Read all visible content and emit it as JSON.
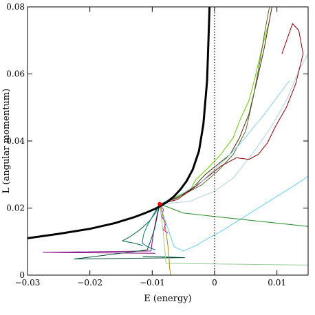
{
  "chart_data": {
    "type": "line",
    "xlabel": "E (energy)",
    "ylabel": "L (angular momentum)",
    "xlim": [
      -0.03,
      0.015
    ],
    "ylim": [
      0,
      0.08
    ],
    "x_ticks": [
      -0.03,
      -0.02,
      -0.01,
      0,
      0.01
    ],
    "x_tick_labels": [
      "−0.03",
      "−0.02",
      "−0.01",
      "0",
      "0.01"
    ],
    "y_ticks": [
      0,
      0.02,
      0.04,
      0.06,
      0.08
    ],
    "y_tick_labels": [
      "0",
      "0.02",
      "0.04",
      "0.06",
      "0.08"
    ],
    "vertical_reference_line": {
      "x": 0,
      "style": "dotted",
      "color": "#000000"
    },
    "boundary_curve": {
      "color": "#000000",
      "x": [
        -0.03,
        -0.025,
        -0.02,
        -0.016,
        -0.013,
        -0.011,
        -0.0095,
        -0.0085,
        -0.0075,
        -0.0065,
        -0.0055,
        -0.0045,
        -0.0035,
        -0.0025,
        -0.0018,
        -0.0012,
        -0.0008
      ],
      "y": [
        0.011,
        0.0123,
        0.0138,
        0.0155,
        0.0172,
        0.0186,
        0.0198,
        0.0208,
        0.022,
        0.0235,
        0.0255,
        0.028,
        0.0315,
        0.037,
        0.045,
        0.058,
        0.08
      ]
    },
    "start_point": {
      "x": -0.0088,
      "y": 0.0212,
      "color": "#ff0000"
    },
    "series": [
      {
        "color": "#006633",
        "x": [
          -0.0088,
          -0.0095,
          -0.0105,
          -0.012,
          -0.0135,
          -0.0148,
          -0.0128,
          -0.0115
        ],
        "y": [
          0.0212,
          0.0185,
          0.016,
          0.0135,
          0.0115,
          0.0102,
          0.0095,
          0.0088
        ]
      },
      {
        "color": "#008080",
        "x": [
          -0.0088,
          -0.0098,
          -0.0108,
          -0.0114,
          -0.0116,
          -0.0108,
          -0.0095
        ],
        "y": [
          0.0212,
          0.018,
          0.0148,
          0.012,
          0.0095,
          0.0085,
          0.0075
        ]
      },
      {
        "color": "#800080",
        "x": [
          -0.0088,
          -0.0092,
          -0.0095,
          -0.0098,
          -0.01,
          -0.0102,
          -0.0275,
          -0.0095
        ],
        "y": [
          0.0212,
          0.0182,
          0.0155,
          0.0125,
          0.01,
          0.0072,
          0.0068,
          0.0065
        ]
      },
      {
        "color": "#cc00cc",
        "x": [
          -0.0088,
          -0.0082,
          -0.0085,
          -0.0078,
          -0.0082,
          -0.0075
        ],
        "y": [
          0.0212,
          0.0195,
          0.0175,
          0.0155,
          0.0135,
          0.0125
        ]
      },
      {
        "color": "#004d33",
        "x": [
          -0.0088,
          -0.0092,
          -0.0096,
          -0.0102,
          -0.0108,
          -0.0225,
          -0.0048,
          -0.0115
        ],
        "y": [
          0.0212,
          0.0175,
          0.014,
          0.0105,
          0.0075,
          0.0048,
          0.0052,
          0.0056
        ]
      },
      {
        "color": "#66ccff",
        "x": [
          -0.0088,
          -0.0075,
          -0.0065,
          -0.005,
          -0.003,
          -0.001,
          0.001,
          0.004,
          0.007,
          0.01,
          0.013,
          0.015
        ],
        "y": [
          0.0212,
          0.014,
          0.0085,
          0.0072,
          0.0088,
          0.011,
          0.013,
          0.0165,
          0.02,
          0.0235,
          0.027,
          0.0295
        ]
      },
      {
        "color": "#99cc99",
        "x": [
          -0.0088,
          -0.0082,
          -0.0078,
          0.015
        ],
        "y": [
          0.0212,
          0.012,
          0.0035,
          0.003
        ]
      },
      {
        "color": "#228b22",
        "x": [
          -0.0088,
          -0.005,
          0.0,
          0.005,
          0.01,
          0.015
        ],
        "y": [
          0.0212,
          0.0185,
          0.0175,
          0.0165,
          0.0155,
          0.0145
        ]
      },
      {
        "color": "#b8860b",
        "x": [
          -0.0088,
          -0.0082,
          -0.0078,
          -0.0075,
          -0.0073,
          -0.0072,
          -0.007
        ],
        "y": [
          0.0212,
          0.017,
          0.013,
          0.009,
          0.005,
          0.002,
          0.0
        ]
      },
      {
        "color": "#66cc00",
        "x": [
          -0.0088,
          -0.006,
          -0.004,
          -0.003,
          -0.001,
          0.001,
          0.003,
          0.004,
          0.0055,
          0.0065,
          0.0075,
          0.0085
        ],
        "y": [
          0.0212,
          0.0235,
          0.025,
          0.0285,
          0.032,
          0.036,
          0.041,
          0.046,
          0.052,
          0.059,
          0.067,
          0.074
        ]
      },
      {
        "color": "#4d2600",
        "x": [
          -0.0088,
          -0.006,
          -0.0035,
          -0.0015,
          0.0005,
          0.0025,
          0.004,
          0.0055,
          0.0068,
          0.008,
          0.0092
        ],
        "y": [
          0.0212,
          0.023,
          0.026,
          0.03,
          0.033,
          0.036,
          0.041,
          0.048,
          0.058,
          0.068,
          0.08
        ]
      },
      {
        "color": "#556b2f",
        "x": [
          -0.0088,
          -0.005,
          -0.002,
          0.0005,
          0.003,
          0.005,
          0.0062,
          0.0072,
          0.008,
          0.0088
        ],
        "y": [
          0.0212,
          0.024,
          0.027,
          0.031,
          0.036,
          0.043,
          0.053,
          0.063,
          0.072,
          0.08
        ]
      },
      {
        "color": "#b0d0e8",
        "x": [
          -0.0088,
          -0.004,
          0.0,
          0.003,
          0.006,
          0.009,
          0.0115,
          0.0135,
          0.015
        ],
        "y": [
          0.0212,
          0.022,
          0.025,
          0.029,
          0.036,
          0.044,
          0.052,
          0.061,
          0.066
        ]
      },
      {
        "color": "#8b0000",
        "x": [
          -0.0088,
          -0.006,
          -0.003,
          -0.001,
          0.001,
          0.0035,
          0.0055,
          0.007,
          0.0085,
          0.0098,
          0.0115,
          0.013,
          0.0142,
          0.0135,
          0.0125,
          0.0108
        ],
        "y": [
          0.0212,
          0.0225,
          0.0265,
          0.0295,
          0.0325,
          0.035,
          0.0345,
          0.036,
          0.0395,
          0.0445,
          0.05,
          0.057,
          0.066,
          0.073,
          0.075,
          0.066
        ]
      },
      {
        "color": "#87ceeb",
        "x": [
          -0.0088,
          -0.005,
          -0.002,
          0.0,
          0.002,
          0.004,
          0.006,
          0.008,
          0.01,
          0.012
        ],
        "y": [
          0.0212,
          0.0245,
          0.028,
          0.0315,
          0.035,
          0.039,
          0.0435,
          0.048,
          0.053,
          0.058
        ]
      }
    ]
  }
}
